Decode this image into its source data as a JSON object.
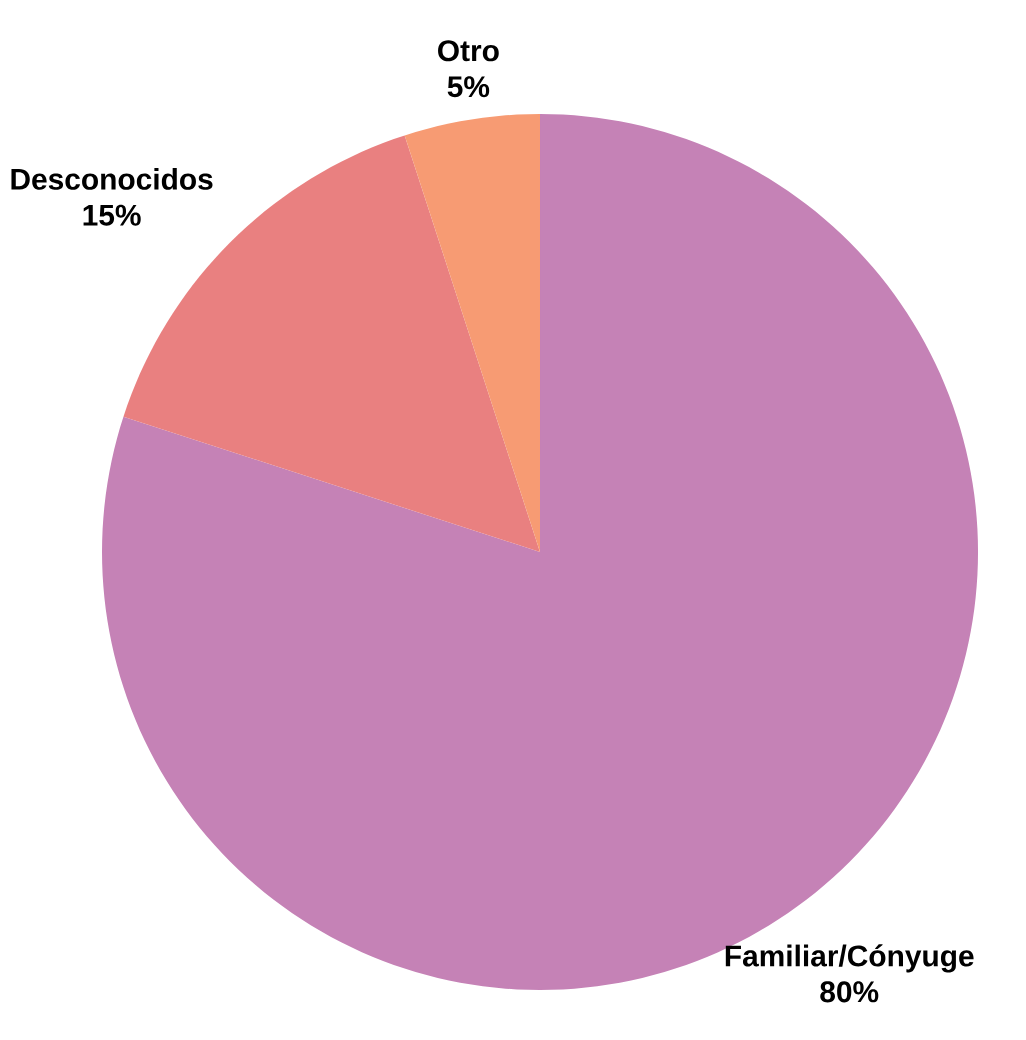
{
  "chart_data": {
    "type": "pie",
    "categories": [
      "Familiar/Cónyuge",
      "Desconocidos",
      "Otro"
    ],
    "values": [
      80,
      15,
      5
    ],
    "value_labels": [
      "80%",
      "15%",
      "5%"
    ],
    "colors": [
      "#c582b6",
      "#e98080",
      "#f79b73"
    ]
  }
}
